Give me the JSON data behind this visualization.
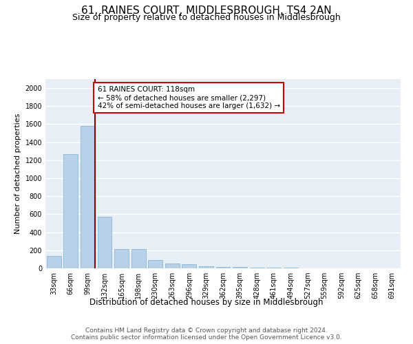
{
  "title": "61, RAINES COURT, MIDDLESBROUGH, TS4 2AN",
  "subtitle": "Size of property relative to detached houses in Middlesbrough",
  "xlabel": "Distribution of detached houses by size in Middlesbrough",
  "ylabel": "Number of detached properties",
  "bar_color": "#b8d0e8",
  "bar_edge_color": "#7aafd4",
  "background_color": "#e8eef6",
  "grid_color": "#ffffff",
  "property_line_color": "#8b0000",
  "annotation_text": "61 RAINES COURT: 118sqm\n← 58% of detached houses are smaller (2,297)\n42% of semi-detached houses are larger (1,632) →",
  "annotation_box_color": "#cc0000",
  "footer_text": "Contains HM Land Registry data © Crown copyright and database right 2024.\nContains public sector information licensed under the Open Government Licence v3.0.",
  "bin_labels": [
    "33sqm",
    "66sqm",
    "99sqm",
    "132sqm",
    "165sqm",
    "198sqm",
    "230sqm",
    "263sqm",
    "296sqm",
    "329sqm",
    "362sqm",
    "395sqm",
    "428sqm",
    "461sqm",
    "494sqm",
    "527sqm",
    "559sqm",
    "592sqm",
    "625sqm",
    "658sqm",
    "691sqm"
  ],
  "bin_values": [
    140,
    1270,
    1580,
    570,
    215,
    215,
    93,
    50,
    47,
    25,
    18,
    15,
    10,
    8,
    5,
    3,
    2,
    2,
    1,
    1,
    1
  ],
  "ylim": [
    0,
    2100
  ],
  "yticks": [
    0,
    200,
    400,
    600,
    800,
    1000,
    1200,
    1400,
    1600,
    1800,
    2000
  ],
  "property_bin_index": 2,
  "title_fontsize": 11,
  "subtitle_fontsize": 9,
  "axis_label_fontsize": 8,
  "tick_fontsize": 7,
  "footer_fontsize": 6.5
}
